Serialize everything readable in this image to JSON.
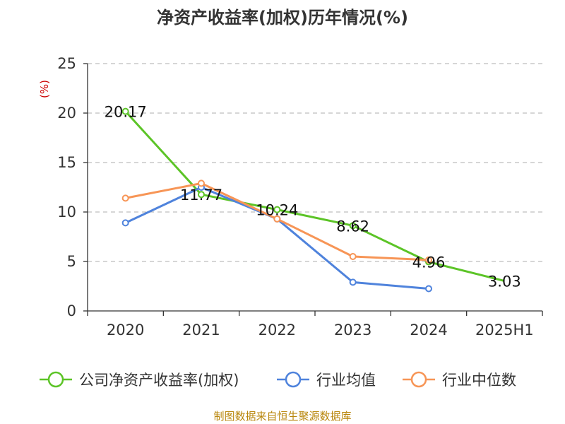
{
  "chart_data": {
    "type": "line",
    "title": "净资产收益率(加权)历年情况(%)",
    "ylabel": "(%)",
    "categories": [
      "2020",
      "2021",
      "2022",
      "2023",
      "2024",
      "2025H1"
    ],
    "ylim": [
      0,
      25
    ],
    "yticks": [
      "0",
      "5",
      "10",
      "15",
      "20",
      "25"
    ],
    "grid": true,
    "legend_position": "bottom",
    "series": [
      {
        "name": "公司净资产收益率(加权)",
        "color": "#5cc427",
        "values": [
          20.17,
          11.77,
          10.24,
          8.62,
          4.96,
          3.03
        ],
        "labels": [
          "20.17",
          "11.77",
          "10.24",
          "8.62",
          "4.96",
          "3.03"
        ]
      },
      {
        "name": "行业均值",
        "color": "#4f83dc",
        "values": [
          8.9,
          12.5,
          9.3,
          2.9,
          2.25,
          null
        ]
      },
      {
        "name": "行业中位数",
        "color": "#f79556",
        "values": [
          11.4,
          12.9,
          9.3,
          5.5,
          5.15,
          null
        ]
      }
    ]
  },
  "source": "制图数据来自恒生聚源数据库"
}
